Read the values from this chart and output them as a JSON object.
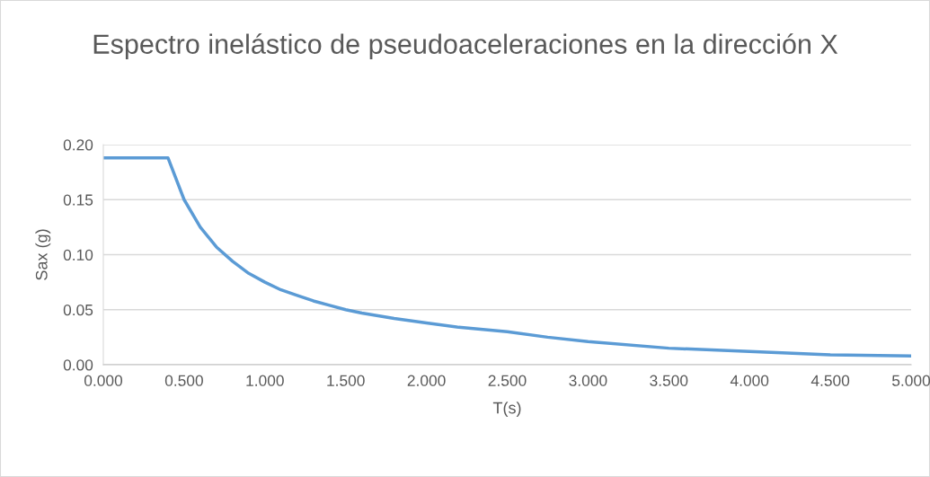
{
  "chart_data": {
    "type": "line",
    "title": "Espectro inelástico de pseudoaceleraciones en la dirección X",
    "xlabel": "T(s)",
    "ylabel": "Sax (g)",
    "x": [
      0,
      0.4,
      0.5,
      0.6,
      0.7,
      0.8,
      0.9,
      1.0,
      1.1,
      1.2,
      1.3,
      1.4,
      1.5,
      1.6,
      1.8,
      2.0,
      2.2,
      2.5,
      2.75,
      3.0,
      3.5,
      4.0,
      4.5,
      5.0
    ],
    "series": [
      {
        "color": "#5b9bd5",
        "values": [
          0.188,
          0.188,
          0.15,
          0.125,
          0.107,
          0.094,
          0.083,
          0.075,
          0.068,
          0.063,
          0.058,
          0.054,
          0.05,
          0.047,
          0.042,
          0.038,
          0.034,
          0.03,
          0.025,
          0.021,
          0.015,
          0.012,
          0.009,
          0.008
        ]
      }
    ],
    "xlim": [
      0,
      5
    ],
    "ylim": [
      0,
      0.2
    ],
    "xticks": [
      {
        "value": 0,
        "label": "0.000"
      },
      {
        "value": 0.5,
        "label": "0.500"
      },
      {
        "value": 1,
        "label": "1.000"
      },
      {
        "value": 1.5,
        "label": "1.500"
      },
      {
        "value": 2,
        "label": "2.000"
      },
      {
        "value": 2.5,
        "label": "2.500"
      },
      {
        "value": 3,
        "label": "3.000"
      },
      {
        "value": 3.5,
        "label": "3.500"
      },
      {
        "value": 4,
        "label": "4.000"
      },
      {
        "value": 4.5,
        "label": "4.500"
      },
      {
        "value": 5,
        "label": "5.000"
      }
    ],
    "yticks": [
      {
        "value": 0,
        "label": "0.00"
      },
      {
        "value": 0.05,
        "label": "0.05"
      },
      {
        "value": 0.1,
        "label": "0.10"
      },
      {
        "value": 0.15,
        "label": "0.15"
      },
      {
        "value": 0.2,
        "label": "0.20"
      }
    ],
    "grid": "y",
    "marker": "none",
    "line_style": "solid"
  }
}
